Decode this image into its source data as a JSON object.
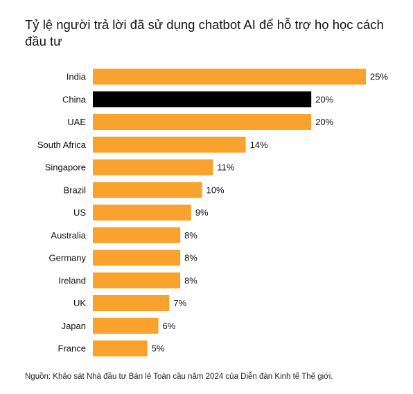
{
  "chart_data": {
    "type": "bar",
    "orientation": "horizontal",
    "title": "Tỷ lệ người trả lời đã sử dụng chatbot AI để hỗ trợ họ học cách đầu tư",
    "categories": [
      "India",
      "China",
      "UAE",
      "South Africa",
      "Singapore",
      "Brazil",
      "US",
      "Australia",
      "Germany",
      "Ireland",
      "UK",
      "Japan",
      "France"
    ],
    "values": [
      25,
      20,
      20,
      14,
      11,
      10,
      9,
      8,
      8,
      8,
      7,
      6,
      5
    ],
    "value_labels": [
      "25%",
      "20%",
      "20%",
      "14%",
      "11%",
      "10%",
      "9%",
      "8%",
      "8%",
      "8%",
      "7%",
      "6%",
      "5%"
    ],
    "unit": "%",
    "xlim": [
      0,
      25
    ],
    "grid": false,
    "legend": "none",
    "colors": {
      "default": "#F9A22E",
      "highlight": "#000000"
    },
    "highlight_category": "China"
  },
  "source": "Nguồn: Khảo sát Nhà đầu tư Bán lẻ Toàn cầu năm 2024 của Diễn đàn Kinh tế Thế giới."
}
